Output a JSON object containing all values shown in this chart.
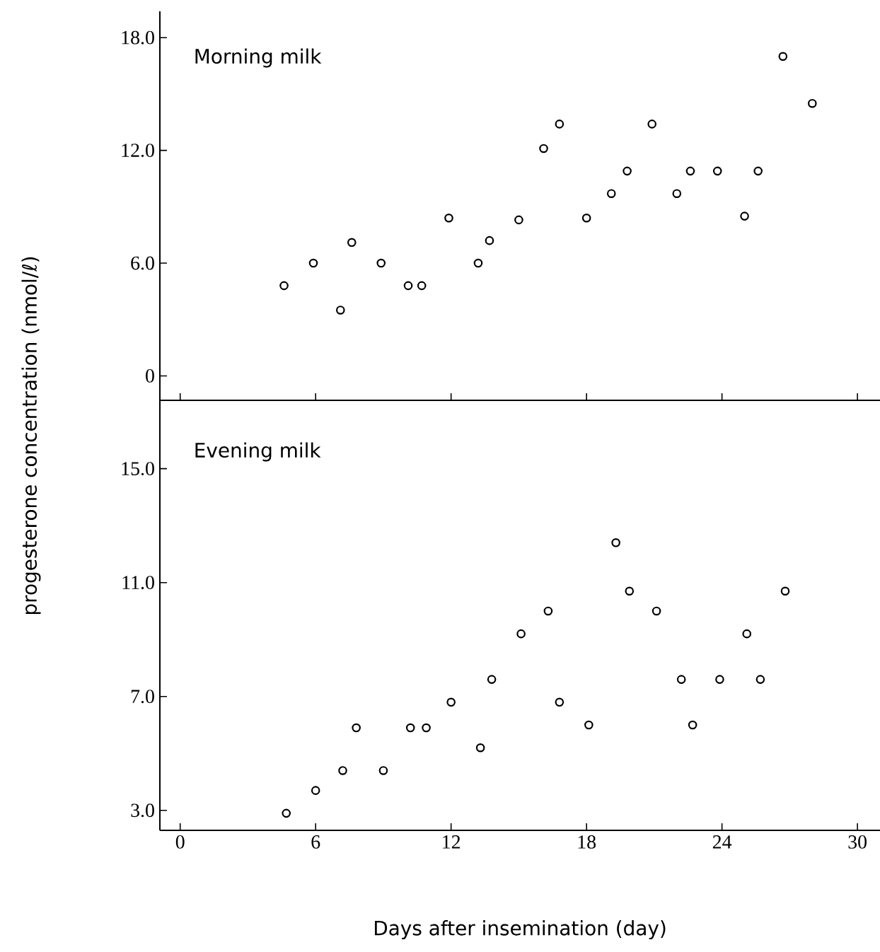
{
  "chart_data": [
    {
      "type": "scatter",
      "title": "Morning milk",
      "ylabel": "progesterone concentration (nmol/ℓ)",
      "tick_labels": "y",
      "marker": "circle",
      "color": "#000000",
      "x": [
        4.6,
        5.9,
        7.1,
        7.6,
        8.9,
        10.1,
        10.7,
        11.9,
        13.2,
        13.7,
        15.0,
        16.1,
        16.8,
        18.0,
        19.1,
        19.8,
        20.9,
        22.0,
        22.6,
        23.8,
        25.0,
        25.6,
        26.7,
        28.0
      ],
      "values": [
        4.8,
        6.0,
        3.5,
        7.1,
        6.0,
        4.8,
        4.8,
        8.4,
        6.0,
        7.2,
        8.3,
        12.1,
        13.4,
        8.4,
        9.7,
        10.9,
        13.4,
        9.7,
        10.9,
        10.9,
        8.5,
        10.9,
        17.0,
        14.5
      ],
      "xlim": [
        -0.9,
        31
      ],
      "ylim": [
        -1.3,
        19.4
      ],
      "xticks": [
        0,
        6,
        12,
        18,
        24,
        30
      ],
      "yticks": [
        0,
        {
          "value": 6,
          "label": "6.0"
        },
        {
          "value": 12,
          "label": "12.0"
        },
        {
          "value": 18,
          "label": "18.0"
        }
      ]
    },
    {
      "type": "scatter",
      "title": "Evening milk",
      "xlabel": "Days after insemination (day)",
      "marker": "circle",
      "color": "#000000",
      "x": [
        4.7,
        6.0,
        7.2,
        7.8,
        9.0,
        10.2,
        10.9,
        12.0,
        13.3,
        13.8,
        15.1,
        16.3,
        16.8,
        18.1,
        19.3,
        19.9,
        21.1,
        22.2,
        22.7,
        23.9,
        25.1,
        25.7,
        26.8
      ],
      "values": [
        2.9,
        3.7,
        4.4,
        5.9,
        4.4,
        5.9,
        5.9,
        6.8,
        5.2,
        7.6,
        9.2,
        10.0,
        6.8,
        6.0,
        12.4,
        10.7,
        10.0,
        7.6,
        6.0,
        7.6,
        9.2,
        7.6,
        10.7
      ],
      "xlim": [
        -0.9,
        31
      ],
      "ylim": [
        2.3,
        17.4
      ],
      "xticks": [
        0,
        6,
        12,
        18,
        24,
        30
      ],
      "yticks": [
        {
          "value": 3,
          "label": "3.0"
        },
        {
          "value": 7,
          "label": "7.0"
        },
        {
          "value": 11,
          "label": "11.0"
        },
        {
          "value": 15,
          "label": "15.0"
        }
      ]
    }
  ]
}
